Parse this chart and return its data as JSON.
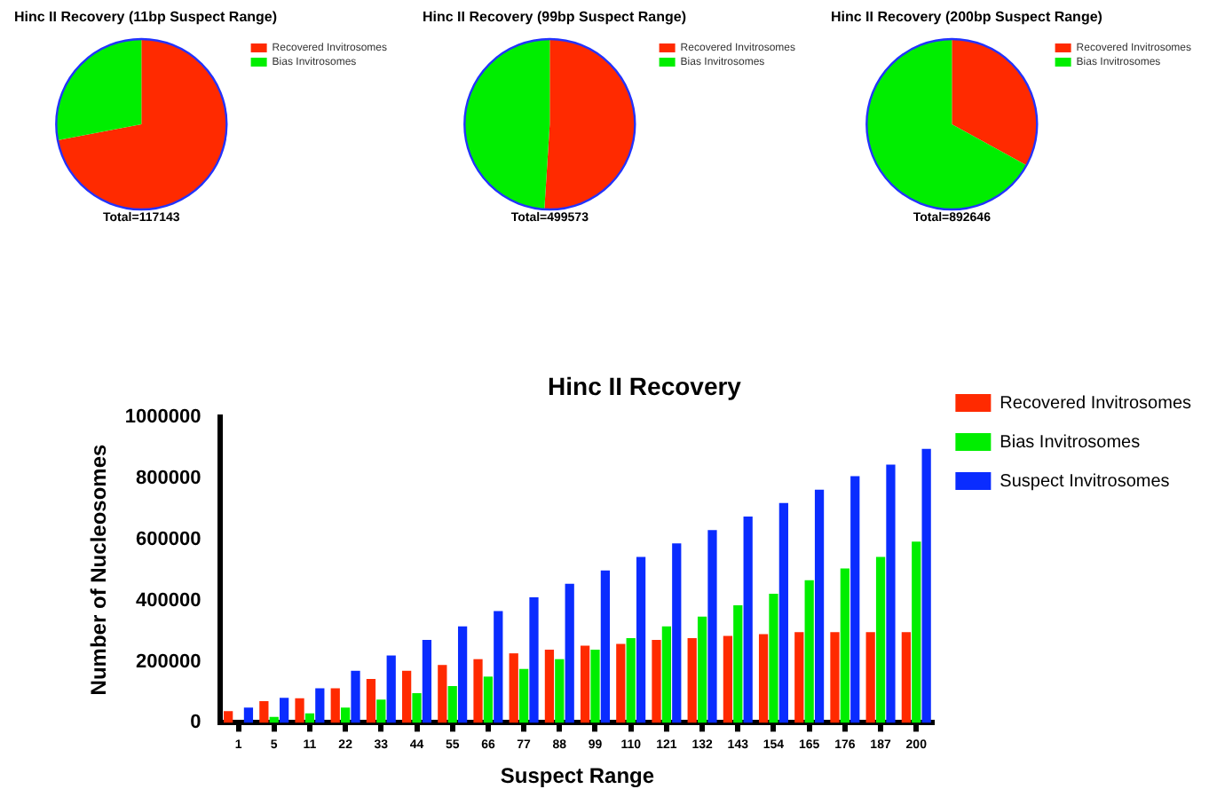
{
  "chart_data": [
    {
      "type": "pie",
      "title": "Hinc II Recovery (11bp Suspect Range)",
      "categories": [
        "Recovered Invitrosomes",
        "Bias Invitrosomes"
      ],
      "values": [
        72,
        28
      ],
      "colors": [
        "#ff2a00",
        "#00ee00"
      ],
      "legend": "right",
      "annotations": [
        "Total=117143"
      ]
    },
    {
      "type": "pie",
      "title": "Hinc II Recovery (99bp Suspect Range)",
      "categories": [
        "Recovered Invitrosomes",
        "Bias Invitrosomes"
      ],
      "values": [
        51,
        49
      ],
      "colors": [
        "#ff2a00",
        "#00ee00"
      ],
      "legend": "right",
      "annotations": [
        "Total=499573"
      ]
    },
    {
      "type": "pie",
      "title": "Hinc II Recovery (200bp Suspect Range)",
      "categories": [
        "Recovered Invitrosomes",
        "Bias Invitrosomes"
      ],
      "values": [
        33,
        67
      ],
      "colors": [
        "#ff2a00",
        "#00ee00"
      ],
      "legend": "right",
      "annotations": [
        "Total=892646"
      ]
    },
    {
      "type": "bar",
      "title": "Hinc II Recovery",
      "xlabel": "Suspect Range",
      "ylabel": "Number of Nucleosomes",
      "categories": [
        "1",
        "5",
        "11",
        "22",
        "33",
        "44",
        "55",
        "66",
        "77",
        "88",
        "99",
        "110",
        "121",
        "132",
        "143",
        "154",
        "165",
        "176",
        "187",
        "200"
      ],
      "series": [
        {
          "name": "Recovered Invitrosomes",
          "color": "#ff2a00",
          "values": [
            38000,
            71000,
            80000,
            113000,
            143000,
            170000,
            189000,
            208000,
            227000,
            239000,
            252000,
            258000,
            271000,
            277000,
            284000,
            290000,
            296000,
            296000,
            296000,
            296000
          ]
        },
        {
          "name": "Bias Invitrosomes",
          "color": "#00ee00",
          "values": [
            0,
            19000,
            31000,
            50000,
            76000,
            97000,
            120000,
            151000,
            176000,
            208000,
            239000,
            277000,
            315000,
            347000,
            384000,
            422000,
            466000,
            504000,
            542000,
            592000
          ]
        },
        {
          "name": "Suspect Invitrosomes",
          "color": "#0a2cff",
          "values": [
            50000,
            82000,
            113000,
            170000,
            220000,
            271000,
            315000,
            365000,
            410000,
            454000,
            498000,
            542000,
            586000,
            630000,
            674000,
            718000,
            762000,
            806000,
            844000,
            895000
          ]
        }
      ],
      "ylim": [
        0,
        1000000
      ],
      "yticks": [
        0,
        200000,
        400000,
        600000,
        800000,
        1000000
      ],
      "grid": false,
      "legend": "right"
    }
  ]
}
